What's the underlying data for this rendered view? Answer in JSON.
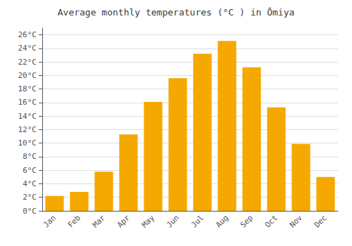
{
  "chart_data": {
    "type": "bar",
    "title": "Average monthly temperatures (°C ) in Ōmiya",
    "categories": [
      "Jan",
      "Feb",
      "Mar",
      "Apr",
      "May",
      "Jun",
      "Jul",
      "Aug",
      "Sep",
      "Oct",
      "Nov",
      "Dec"
    ],
    "values": [
      2.2,
      2.8,
      5.8,
      11.3,
      16.1,
      19.6,
      23.2,
      25.1,
      21.2,
      15.3,
      9.9,
      5.0
    ],
    "color": "#F5A800",
    "ylim": [
      0,
      27
    ],
    "yticks": [
      {
        "value": 0,
        "label": "0°C"
      },
      {
        "value": 2,
        "label": "2°C"
      },
      {
        "value": 4,
        "label": "4°C"
      },
      {
        "value": 6,
        "label": "6°C"
      },
      {
        "value": 8,
        "label": "8°C"
      },
      {
        "value": 10,
        "label": "10°C"
      },
      {
        "value": 12,
        "label": "12°C"
      },
      {
        "value": 14,
        "label": "14°C"
      },
      {
        "value": 16,
        "label": "16°C"
      },
      {
        "value": 18,
        "label": "18°C"
      },
      {
        "value": 20,
        "label": "20°C"
      },
      {
        "value": 22,
        "label": "22°C"
      },
      {
        "value": 24,
        "label": "24°C"
      },
      {
        "value": 26,
        "label": "26°C"
      }
    ],
    "grid": true
  }
}
